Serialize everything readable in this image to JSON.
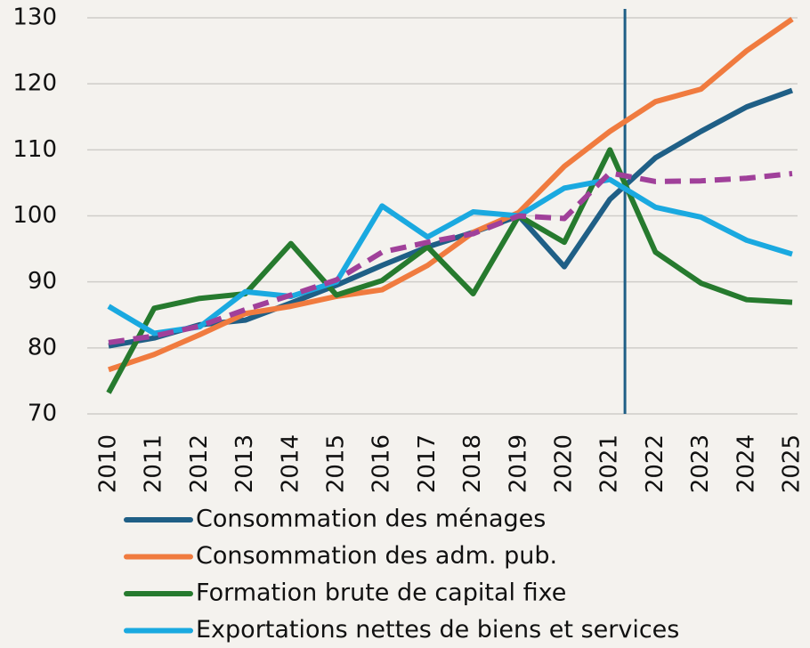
{
  "chart_data": {
    "type": "line",
    "x": [
      2010,
      2011,
      2012,
      2013,
      2014,
      2015,
      2016,
      2017,
      2018,
      2019,
      2020,
      2021,
      2022,
      2023,
      2024,
      2025
    ],
    "xlim": [
      2010,
      2025
    ],
    "ylim": [
      70,
      130
    ],
    "yticks": [
      70,
      80,
      90,
      100,
      110,
      120,
      130
    ],
    "grid": true,
    "vline": 2021.33,
    "vline_color": "#1f5f86",
    "series": [
      {
        "name": "Consommation des ménages",
        "color": "#1f5f86",
        "values": [
          80.3,
          81.5,
          83.5,
          84.2,
          86.8,
          89.5,
          92.5,
          95.3,
          97.5,
          100,
          92.3,
          102.5,
          108.8,
          112.8,
          116.5,
          119
        ]
      },
      {
        "name": "Consommation des adm. pub.",
        "color": "#f07b3f",
        "values": [
          76.7,
          79,
          82,
          85.2,
          86.3,
          87.8,
          88.8,
          92.5,
          97.5,
          100.5,
          107.5,
          112.8,
          117.3,
          119.2,
          125,
          129.8
        ]
      },
      {
        "name": "Formation brute de capital fixe",
        "color": "#267a2e",
        "values": [
          73.2,
          86,
          87.5,
          88.2,
          95.8,
          88,
          90.2,
          95.3,
          88.2,
          100,
          96,
          110,
          94.5,
          89.8,
          87.3,
          86.9
        ]
      },
      {
        "name": "Exportations nettes de biens et services",
        "color": "#1aa9e0",
        "values": [
          86.3,
          82.2,
          83.2,
          88.5,
          87.8,
          90,
          101.5,
          96.8,
          100.6,
          100,
          104.2,
          105.5,
          101.3,
          99.8,
          96.3,
          94.2
        ]
      },
      {
        "color": "#a0409a",
        "dashed": true,
        "values": [
          80.8,
          81.8,
          83.3,
          85.8,
          88,
          90.3,
          94.5,
          96,
          97.3,
          100,
          99.6,
          106.5,
          105.2,
          105.3,
          105.7,
          106.4
        ]
      }
    ]
  }
}
